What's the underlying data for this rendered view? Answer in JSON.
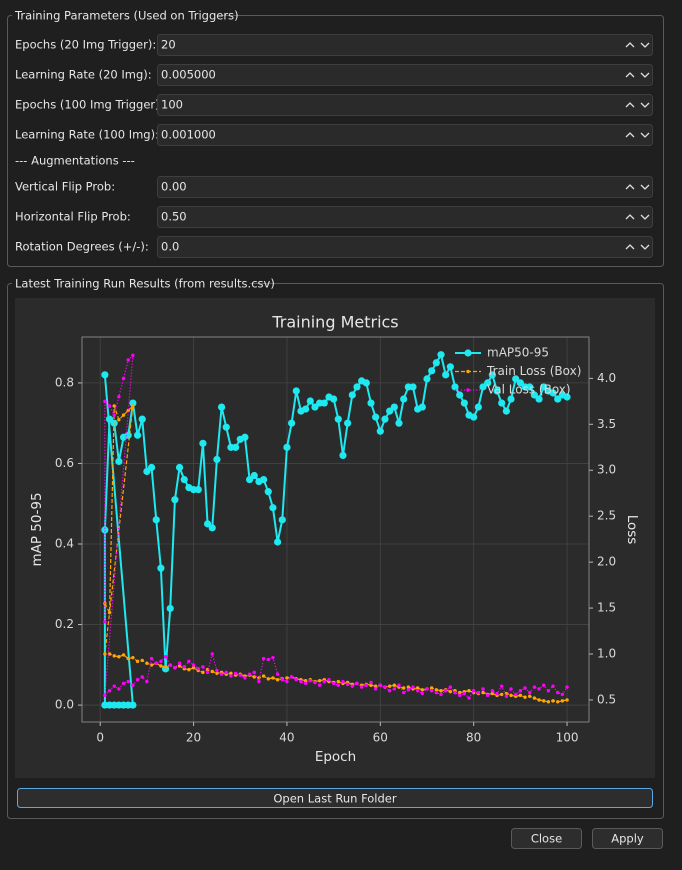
{
  "form": {
    "group1": {
      "title": "Training Parameters (Used on Triggers)",
      "rows": [
        {
          "label": "Epochs (20 Img Trigger):",
          "value": "20"
        },
        {
          "label": "Learning Rate (20 Img):",
          "value": "0.005000"
        },
        {
          "label": "Epochs (100 Img Trigger):",
          "value": "100"
        },
        {
          "label": "Learning Rate (100 Img):",
          "value": "0.001000"
        }
      ],
      "section": "--- Augmentations ---",
      "aug_rows": [
        {
          "label": "Vertical Flip Prob:",
          "value": "0.00"
        },
        {
          "label": "Horizontal Flip Prob:",
          "value": "0.50"
        },
        {
          "label": "Rotation Degrees (+/-):",
          "value": "0.0"
        }
      ]
    },
    "group2": {
      "title": "Latest Training Run Results (from results.csv)",
      "button": "Open Last Run Folder"
    },
    "buttons": [
      "Close",
      "Apply"
    ]
  },
  "chart_data": {
    "type": "line",
    "title": "Training Metrics",
    "x_label": "Epoch",
    "y_label": "mAP 50-95",
    "y2_label": "Loss",
    "xlim": [
      -3.9,
      104.7
    ],
    "xticks": [
      0,
      20,
      40,
      60,
      80,
      100
    ],
    "ylim": [
      -0.042,
      0.914
    ],
    "yticks": [
      {
        "value": 0,
        "label": "0.0"
      },
      0.2,
      0.4,
      0.6,
      0.8
    ],
    "y2lim": [
      0.26,
      4.45
    ],
    "y2ticks": [
      0.5,
      {
        "value": 1,
        "label": "1.0"
      },
      1.5,
      {
        "value": 2,
        "label": "2.0"
      },
      2.5,
      {
        "value": 3,
        "label": "3.0"
      },
      3.5,
      {
        "value": 4,
        "label": "4.0"
      }
    ],
    "grid": true,
    "legend": "upper right",
    "series": [
      {
        "name": "mAP50-95",
        "color": "#1ee8f0",
        "linestyle": "solid",
        "x": [
          1,
          7,
          6,
          5,
          4,
          3,
          2,
          1,
          1,
          2,
          3,
          4,
          5,
          6,
          7,
          8,
          9,
          10,
          11,
          12,
          13,
          14,
          15,
          16,
          17,
          18,
          19,
          20,
          21,
          22,
          23,
          24,
          25,
          26,
          27,
          28,
          29,
          30,
          31,
          32,
          33,
          34,
          35,
          36,
          37,
          38,
          39,
          40,
          41,
          42,
          43,
          44,
          45,
          46,
          47,
          48,
          49,
          50,
          51,
          52,
          53,
          54,
          55,
          56,
          57,
          58,
          59,
          60,
          61,
          62,
          63,
          64,
          65,
          66,
          67,
          68,
          69,
          70,
          71,
          72,
          73,
          74,
          75,
          76,
          77,
          78,
          79,
          80,
          81,
          82,
          83,
          84,
          85,
          86,
          87,
          88,
          89,
          90,
          91,
          92,
          93,
          94,
          95,
          96,
          97,
          98,
          99,
          100
        ],
        "values": [
          0.82,
          0,
          0,
          0,
          0,
          0,
          0,
          0,
          0.435,
          0.71,
          0.7,
          0.605,
          0.665,
          0.67,
          0.75,
          0.67,
          0.71,
          0.58,
          0.59,
          0.46,
          0.34,
          0.09,
          0.24,
          0.51,
          0.59,
          0.56,
          0.54,
          0.535,
          0.535,
          0.65,
          0.45,
          0.44,
          0.61,
          0.74,
          0.69,
          0.64,
          0.64,
          0.66,
          0.665,
          0.56,
          0.57,
          0.555,
          0.56,
          0.53,
          0.49,
          0.405,
          0.46,
          0.64,
          0.7,
          0.78,
          0.73,
          0.735,
          0.755,
          0.74,
          0.75,
          0.75,
          0.765,
          0.76,
          0.71,
          0.62,
          0.7,
          0.77,
          0.79,
          0.805,
          0.8,
          0.75,
          0.715,
          0.68,
          0.71,
          0.73,
          0.74,
          0.7,
          0.76,
          0.79,
          0.79,
          0.735,
          0.74,
          0.81,
          0.83,
          0.85,
          0.87,
          0.82,
          0.84,
          0.79,
          0.77,
          0.75,
          0.72,
          0.715,
          0.74,
          0.79,
          0.8,
          0.82,
          0.78,
          0.75,
          0.73,
          0.76,
          0.81,
          0.8,
          0.79,
          0.79,
          0.77,
          0.76,
          0.79,
          0.78,
          0.775,
          0.76,
          0.77,
          0.765
        ]
      },
      {
        "name": "Train Loss (Box)",
        "color": "#ffa500",
        "linestyle": "dashed",
        "axis": "y2",
        "x": [
          1,
          2,
          3,
          4,
          5,
          6,
          7,
          1,
          2,
          3,
          4,
          5,
          6,
          7,
          8,
          9,
          10,
          11,
          12,
          13,
          14,
          15,
          16,
          17,
          18,
          19,
          20,
          21,
          22,
          23,
          24,
          25,
          26,
          27,
          28,
          29,
          30,
          31,
          32,
          33,
          34,
          35,
          36,
          37,
          38,
          39,
          40,
          41,
          42,
          43,
          44,
          45,
          46,
          47,
          48,
          49,
          50,
          51,
          52,
          53,
          54,
          55,
          56,
          57,
          58,
          59,
          60,
          61,
          62,
          63,
          64,
          65,
          66,
          67,
          68,
          69,
          70,
          71,
          72,
          73,
          74,
          75,
          76,
          77,
          78,
          79,
          80,
          81,
          82,
          83,
          84,
          85,
          86,
          87,
          88,
          89,
          90,
          91,
          92,
          93,
          94,
          95,
          96,
          97,
          98,
          99,
          100
        ],
        "values": [
          1.55,
          1.45,
          3.7,
          3.55,
          3.6,
          3.65,
          3.7,
          1.0,
          1.0,
          0.98,
          0.97,
          0.99,
          0.95,
          0.96,
          0.92,
          0.93,
          0.9,
          0.88,
          0.9,
          0.87,
          0.86,
          0.88,
          0.85,
          0.87,
          0.84,
          0.83,
          0.85,
          0.82,
          0.8,
          0.83,
          0.81,
          0.79,
          0.8,
          0.78,
          0.79,
          0.77,
          0.78,
          0.76,
          0.77,
          0.75,
          0.74,
          0.76,
          0.73,
          0.74,
          0.72,
          0.73,
          0.74,
          0.75,
          0.73,
          0.72,
          0.71,
          0.72,
          0.7,
          0.71,
          0.72,
          0.7,
          0.69,
          0.7,
          0.68,
          0.69,
          0.67,
          0.68,
          0.66,
          0.67,
          0.66,
          0.65,
          0.66,
          0.64,
          0.65,
          0.66,
          0.64,
          0.63,
          0.64,
          0.62,
          0.63,
          0.61,
          0.62,
          0.63,
          0.61,
          0.6,
          0.61,
          0.59,
          0.6,
          0.58,
          0.59,
          0.6,
          0.58,
          0.57,
          0.58,
          0.56,
          0.57,
          0.55,
          0.56,
          0.57,
          0.55,
          0.54,
          0.55,
          0.53,
          0.54,
          0.52,
          0.5,
          0.49,
          0.48,
          0.49,
          0.48,
          0.49,
          0.5
        ]
      },
      {
        "name": "Val Loss (Box)",
        "color": "#ff00ff",
        "linestyle": "dotted",
        "axis": "y2",
        "x": [
          1,
          1,
          2,
          3,
          4,
          5,
          6,
          7,
          1,
          2,
          3,
          4,
          5,
          6,
          7,
          8,
          9,
          10,
          11,
          12,
          13,
          14,
          15,
          16,
          17,
          18,
          19,
          20,
          21,
          22,
          23,
          24,
          25,
          26,
          27,
          28,
          29,
          30,
          31,
          32,
          33,
          34,
          35,
          36,
          37,
          38,
          39,
          40,
          41,
          42,
          43,
          44,
          45,
          46,
          47,
          48,
          49,
          50,
          51,
          52,
          53,
          54,
          55,
          56,
          57,
          58,
          59,
          60,
          61,
          62,
          63,
          64,
          65,
          66,
          67,
          68,
          69,
          70,
          71,
          72,
          73,
          74,
          75,
          76,
          77,
          78,
          79,
          80,
          81,
          82,
          83,
          84,
          85,
          86,
          87,
          88,
          89,
          90,
          91,
          92,
          93,
          94,
          95,
          96,
          97,
          98,
          99,
          100
        ],
        "values": [
          1.35,
          3.75,
          3.7,
          3.6,
          3.8,
          4.0,
          4.2,
          4.25,
          0.55,
          0.6,
          0.65,
          0.62,
          0.68,
          0.7,
          0.66,
          0.72,
          0.75,
          0.7,
          0.95,
          0.9,
          0.92,
          0.97,
          0.88,
          0.85,
          0.9,
          0.86,
          0.92,
          0.88,
          0.84,
          0.86,
          0.8,
          1.0,
          0.82,
          0.78,
          0.8,
          0.76,
          0.79,
          0.77,
          0.74,
          0.78,
          0.8,
          0.7,
          0.95,
          0.94,
          0.96,
          0.78,
          0.72,
          0.7,
          0.75,
          0.72,
          0.7,
          0.68,
          0.71,
          0.69,
          0.66,
          0.7,
          0.72,
          0.68,
          0.66,
          0.7,
          0.67,
          0.65,
          0.68,
          0.64,
          0.66,
          0.69,
          0.62,
          0.66,
          0.64,
          0.6,
          0.62,
          0.66,
          0.58,
          0.61,
          0.64,
          0.6,
          0.57,
          0.62,
          0.6,
          0.58,
          0.56,
          0.6,
          0.64,
          0.58,
          0.55,
          0.57,
          0.52,
          0.6,
          0.58,
          0.62,
          0.55,
          0.6,
          0.57,
          0.65,
          0.54,
          0.62,
          0.56,
          0.6,
          0.63,
          0.58,
          0.64,
          0.62,
          0.66,
          0.6,
          0.65,
          0.58,
          0.56,
          0.64
        ]
      }
    ]
  }
}
